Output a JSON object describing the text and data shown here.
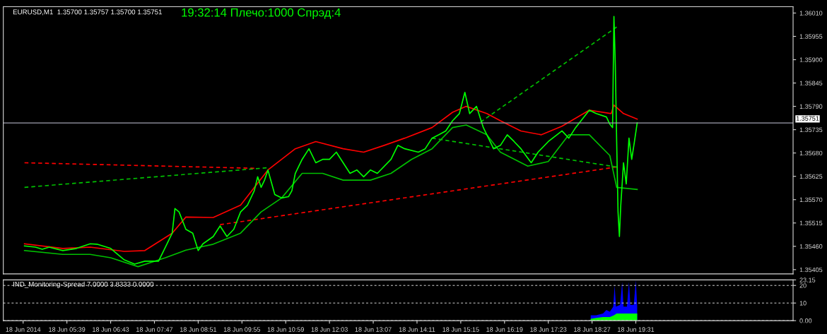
{
  "chart_data": [
    {
      "type": "line",
      "title": "EURUSD,M1  1.35700 1.35757 1.35700 1.35751",
      "annotations": [
        "19:32:14 Плечо:1000 Спрэд:4"
      ],
      "xlim": [
        "2014-06-18T04:06",
        "2014-06-18T23:21"
      ],
      "ylim": [
        1.35395,
        1.36025
      ],
      "yticks": [
        1.35405,
        {
          "value": 1.3546,
          "label": "1.35460"
        },
        1.35515,
        {
          "value": 1.3557,
          "label": "1.35570"
        },
        1.35625,
        {
          "value": 1.3568,
          "label": "1.35680"
        },
        1.35735,
        {
          "value": 1.3579,
          "label": "1.35790"
        },
        1.35845,
        {
          "value": 1.359,
          "label": "1.35900"
        },
        1.35955,
        {
          "value": 1.3601,
          "label": "1.36010"
        }
      ],
      "tick_labels": "y",
      "grid": false,
      "legend": false,
      "ref_lines": [
        {
          "axis": "y",
          "value": 1.35751,
          "label": "1.35751",
          "color": "#a0a0b0"
        }
      ],
      "series": [
        {
          "color": "#ff0000",
          "line_style": "dashed",
          "x": [
            "2014-06-18T04:37",
            "2014-06-18T10:13"
          ],
          "values": [
            1.35657,
            1.35644
          ]
        },
        {
          "color": "#00c000",
          "line_style": "dashed",
          "x": [
            "2014-06-18T04:37",
            "2014-06-18T10:31"
          ],
          "values": [
            1.35599,
            1.35645
          ]
        },
        {
          "color": "#ff0000",
          "line_style": "dashed",
          "x": [
            "2014-06-18T09:23",
            "2014-06-18T19:03"
          ],
          "values": [
            1.35511,
            1.35647
          ]
        },
        {
          "color": "#00c000",
          "line_style": "dashed",
          "x": [
            "2014-06-18T14:33",
            "2014-06-18T19:03"
          ],
          "values": [
            1.35715,
            1.35647
          ]
        },
        {
          "color": "#00c000",
          "line_style": "dashed",
          "x": [
            "2014-06-18T15:44",
            "2014-06-18T19:03"
          ],
          "values": [
            1.35753,
            1.35977
          ]
        },
        {
          "color": "#ff0000",
          "line_style": "solid",
          "x": [
            "2014-06-18T04:37",
            "2014-06-18T05:33",
            "2014-06-18T06:13",
            "2014-06-18T07:03",
            "2014-06-18T07:33",
            "2014-06-18T08:13",
            "2014-06-18T08:33",
            "2014-06-18T09:13",
            "2014-06-18T09:53",
            "2014-06-18T10:33",
            "2014-06-18T11:13",
            "2014-06-18T11:43",
            "2014-06-18T12:23",
            "2014-06-18T12:53",
            "2014-06-18T13:23",
            "2014-06-18T13:53",
            "2014-06-18T14:33",
            "2014-06-18T15:03",
            "2014-06-18T15:23",
            "2014-06-18T15:53",
            "2014-06-18T16:13",
            "2014-06-18T16:43",
            "2014-06-18T17:13",
            "2014-06-18T17:43",
            "2014-06-18T18:23",
            "2014-06-18T18:55",
            "2014-06-18T18:59",
            "2014-06-18T19:13",
            "2014-06-18T19:33"
          ],
          "values": [
            1.35466,
            1.35455,
            1.35458,
            1.35448,
            1.3545,
            1.35491,
            1.35529,
            1.35528,
            1.35557,
            1.3564,
            1.3569,
            1.35707,
            1.3569,
            1.35682,
            1.35698,
            1.35715,
            1.3574,
            1.35776,
            1.3579,
            1.35773,
            1.35756,
            1.35732,
            1.35723,
            1.35743,
            1.35781,
            1.35773,
            1.35793,
            1.35773,
            1.3576
          ]
        },
        {
          "color": "#00c000",
          "line_style": "solid",
          "x": [
            "2014-06-18T04:37",
            "2014-06-18T05:33",
            "2014-06-18T06:13",
            "2014-06-18T06:43",
            "2014-06-18T07:23",
            "2014-06-18T08:03",
            "2014-06-18T08:33",
            "2014-06-18T09:13",
            "2014-06-18T09:53",
            "2014-06-18T10:23",
            "2014-06-18T10:53",
            "2014-06-18T11:23",
            "2014-06-18T11:53",
            "2014-06-18T12:23",
            "2014-06-18T13:03",
            "2014-06-18T13:33",
            "2014-06-18T14:03",
            "2014-06-18T14:33",
            "2014-06-18T15:03",
            "2014-06-18T15:23",
            "2014-06-18T15:53",
            "2014-06-18T16:13",
            "2014-06-18T16:53",
            "2014-06-18T17:23",
            "2014-06-18T17:53",
            "2014-06-18T18:23",
            "2014-06-18T18:53",
            "2014-06-18T19:03",
            "2014-06-18T19:33"
          ],
          "values": [
            1.3545,
            1.35441,
            1.35441,
            1.35433,
            1.35412,
            1.35433,
            1.35451,
            1.35465,
            1.35491,
            1.35541,
            1.35574,
            1.35632,
            1.35632,
            1.35616,
            1.35616,
            1.35632,
            1.35665,
            1.3569,
            1.3574,
            1.35746,
            1.35723,
            1.35682,
            1.35649,
            1.3566,
            1.35723,
            1.35723,
            1.35674,
            1.35599,
            1.35594
          ]
        },
        {
          "color": "#00ff00",
          "line_style": "solid",
          "x": [
            "2014-06-18T04:37",
            "2014-06-18T04:53",
            "2014-06-18T05:03",
            "2014-06-18T05:13",
            "2014-06-18T05:33",
            "2014-06-18T05:53",
            "2014-06-18T06:13",
            "2014-06-18T06:23",
            "2014-06-18T06:43",
            "2014-06-18T07:03",
            "2014-06-18T07:18",
            "2014-06-18T07:33",
            "2014-06-18T07:53",
            "2014-06-18T08:03",
            "2014-06-18T08:13",
            "2014-06-18T08:17",
            "2014-06-18T08:23",
            "2014-06-18T08:33",
            "2014-06-18T08:43",
            "2014-06-18T08:51",
            "2014-06-18T08:58",
            "2014-06-18T09:13",
            "2014-06-18T09:23",
            "2014-06-18T09:33",
            "2014-06-18T09:43",
            "2014-06-18T09:53",
            "2014-06-18T10:03",
            "2014-06-18T10:13",
            "2014-06-18T10:18",
            "2014-06-18T10:23",
            "2014-06-18T10:28",
            "2014-06-18T10:33",
            "2014-06-18T10:43",
            "2014-06-18T10:53",
            "2014-06-18T11:03",
            "2014-06-18T11:08",
            "2014-06-18T11:13",
            "2014-06-18T11:23",
            "2014-06-18T11:33",
            "2014-06-18T11:43",
            "2014-06-18T11:53",
            "2014-06-18T12:03",
            "2014-06-18T12:13",
            "2014-06-18T12:23",
            "2014-06-18T12:33",
            "2014-06-18T12:43",
            "2014-06-18T12:53",
            "2014-06-18T13:03",
            "2014-06-18T13:13",
            "2014-06-18T13:33",
            "2014-06-18T13:43",
            "2014-06-18T13:53",
            "2014-06-18T14:13",
            "2014-06-18T14:23",
            "2014-06-18T14:33",
            "2014-06-18T14:43",
            "2014-06-18T14:53",
            "2014-06-18T15:03",
            "2014-06-18T15:13",
            "2014-06-18T15:21",
            "2014-06-18T15:28",
            "2014-06-18T15:38",
            "2014-06-18T15:48",
            "2014-06-18T16:03",
            "2014-06-18T16:13",
            "2014-06-18T16:23",
            "2014-06-18T16:33",
            "2014-06-18T16:43",
            "2014-06-18T16:58",
            "2014-06-18T17:08",
            "2014-06-18T17:23",
            "2014-06-18T17:43",
            "2014-06-18T17:53",
            "2014-06-18T18:03",
            "2014-06-18T18:23",
            "2014-06-18T18:33",
            "2014-06-18T18:48",
            "2014-06-18T18:53",
            "2014-06-18T18:57",
            "2014-06-18T18:59",
            "2014-06-18T19:01",
            "2014-06-18T19:03",
            "2014-06-18T19:05",
            "2014-06-18T19:07",
            "2014-06-18T19:09",
            "2014-06-18T19:13",
            "2014-06-18T19:17",
            "2014-06-18T19:21",
            "2014-06-18T19:25",
            "2014-06-18T19:29",
            "2014-06-18T19:33"
          ],
          "values": [
            1.35461,
            1.35458,
            1.35453,
            1.35458,
            1.3545,
            1.35455,
            1.35466,
            1.35465,
            1.35455,
            1.35428,
            1.35418,
            1.35425,
            1.35425,
            1.35458,
            1.35491,
            1.35549,
            1.35541,
            1.355,
            1.35491,
            1.3545,
            1.35466,
            1.35483,
            1.35508,
            1.35483,
            1.355,
            1.35541,
            1.35557,
            1.35591,
            1.35624,
            1.35599,
            1.35616,
            1.3564,
            1.35582,
            1.35574,
            1.35577,
            1.35591,
            1.35632,
            1.35665,
            1.3569,
            1.35657,
            1.35665,
            1.35665,
            1.35682,
            1.35657,
            1.35632,
            1.3564,
            1.35624,
            1.3564,
            1.35632,
            1.35665,
            1.35698,
            1.3569,
            1.35682,
            1.3569,
            1.35715,
            1.35723,
            1.35732,
            1.35756,
            1.35773,
            1.35823,
            1.35773,
            1.3579,
            1.3574,
            1.3569,
            1.35698,
            1.35723,
            1.35707,
            1.3569,
            1.35657,
            1.35682,
            1.35707,
            1.35732,
            1.35715,
            1.3574,
            1.35781,
            1.35773,
            1.35765,
            1.35748,
            1.3574,
            1.36002,
            1.35889,
            1.35707,
            1.35541,
            1.35483,
            1.35557,
            1.35657,
            1.35607,
            1.35715,
            1.35665,
            1.35707,
            1.35751
          ]
        }
      ]
    },
    {
      "type": "area",
      "title": "IND_Monitoring-Spread 7.0000 3.8333 0.0000",
      "xlim": [
        "2014-06-18T04:06",
        "2014-06-18T23:21"
      ],
      "ylim": [
        0,
        23.15
      ],
      "yticks": [
        {
          "value": 0,
          "label": "0.00"
        },
        10,
        20,
        23.15
      ],
      "xticks": [
        {
          "value": "2014-06-18T04:35",
          "label": "18 Jun 2014"
        },
        {
          "value": "2014-06-18T05:39",
          "label": "18 Jun 05:39"
        },
        {
          "value": "2014-06-18T06:43",
          "label": "18 Jun 06:43"
        },
        {
          "value": "2014-06-18T07:47",
          "label": "18 Jun 07:47"
        },
        {
          "value": "2014-06-18T08:51",
          "label": "18 Jun 08:51"
        },
        {
          "value": "2014-06-18T09:55",
          "label": "18 Jun 09:55"
        },
        {
          "value": "2014-06-18T10:59",
          "label": "18 Jun 10:59"
        },
        {
          "value": "2014-06-18T12:03",
          "label": "18 Jun 12:03"
        },
        {
          "value": "2014-06-18T13:07",
          "label": "18 Jun 13:07"
        },
        {
          "value": "2014-06-18T14:11",
          "label": "18 Jun 14:11"
        },
        {
          "value": "2014-06-18T15:15",
          "label": "18 Jun 15:15"
        },
        {
          "value": "2014-06-18T16:19",
          "label": "18 Jun 16:19"
        },
        {
          "value": "2014-06-18T17:23",
          "label": "18 Jun 17:23"
        },
        {
          "value": "2014-06-18T18:27",
          "label": "18 Jun 18:27"
        },
        {
          "value": "2014-06-18T19:31",
          "label": "18 Jun 19:31"
        }
      ],
      "grid": "y",
      "legend": false,
      "series": [
        {
          "color": "#0000ff",
          "x": [
            "2014-06-18T18:25",
            "2014-06-18T18:33",
            "2014-06-18T18:43",
            "2014-06-18T18:48",
            "2014-06-18T18:53",
            "2014-06-18T18:58",
            "2014-06-18T19:00",
            "2014-06-18T19:02",
            "2014-06-18T19:08",
            "2014-06-18T19:11",
            "2014-06-18T19:13",
            "2014-06-18T19:18",
            "2014-06-18T19:21",
            "2014-06-18T19:23",
            "2014-06-18T19:28",
            "2014-06-18T19:31",
            "2014-06-18T19:33"
          ],
          "values": [
            3,
            3,
            4,
            6,
            5,
            8,
            20,
            8,
            9,
            22,
            8,
            8,
            22,
            9,
            9,
            23,
            8
          ]
        },
        {
          "color": "#00ff00",
          "x": [
            "2014-06-18T18:25",
            "2014-06-18T18:33",
            "2014-06-18T18:43",
            "2014-06-18T18:53",
            "2014-06-18T18:59",
            "2014-06-18T19:03",
            "2014-06-18T19:13",
            "2014-06-18T19:23",
            "2014-06-18T19:33"
          ],
          "values": [
            1,
            1.5,
            2,
            2,
            3,
            4,
            4,
            4,
            4
          ]
        }
      ]
    }
  ]
}
